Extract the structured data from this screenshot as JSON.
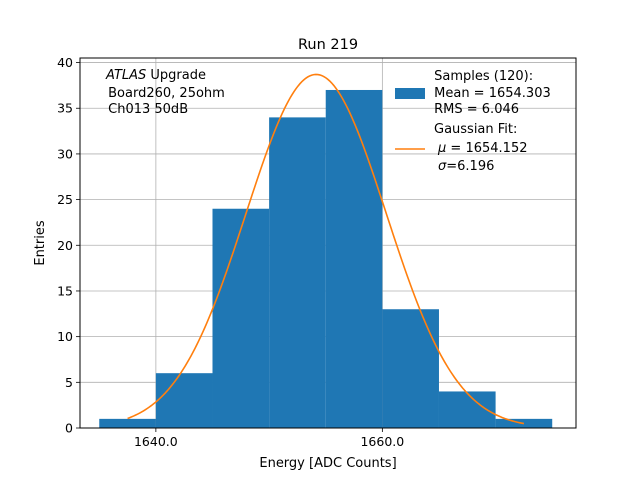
{
  "chart_data": {
    "type": "bar",
    "title": "Run 219",
    "xlabel": "Energy [ADC Counts]",
    "ylabel": "Entries",
    "xlim": [
      1633.3,
      1677.1
    ],
    "ylim": [
      0,
      40.5
    ],
    "grid": true,
    "x_ticks": [
      {
        "value": 1640,
        "label": "1640.0"
      },
      {
        "value": 1660,
        "label": "1660.0"
      }
    ],
    "y_ticks": [
      0,
      5,
      10,
      15,
      20,
      25,
      30,
      35,
      40
    ],
    "bins": [
      {
        "left": 1635,
        "right": 1640,
        "count": 1
      },
      {
        "left": 1640,
        "right": 1645,
        "count": 6
      },
      {
        "left": 1645,
        "right": 1650,
        "count": 24
      },
      {
        "left": 1650,
        "right": 1655,
        "count": 34
      },
      {
        "left": 1655,
        "right": 1660,
        "count": 37
      },
      {
        "left": 1660,
        "right": 1665,
        "count": 13
      },
      {
        "left": 1665,
        "right": 1670,
        "count": 4
      },
      {
        "left": 1670,
        "right": 1675,
        "count": 1
      }
    ],
    "fit": {
      "mu": 1654.152,
      "sigma": 6.196,
      "amplitude": 38.7,
      "x_range": [
        1637.5,
        1672.5
      ]
    },
    "colors": {
      "bars": "#1f77b4",
      "fit": "#ff7f0e",
      "grid": "#b0b0b0"
    },
    "annotation": {
      "italic": "ATLAS",
      "line1_rest": " Upgrade",
      "line2": " Board260, 25ohm",
      "line3": " Ch013 50dB"
    },
    "legend": {
      "placement": "top-right",
      "samples": [
        " Samples (120):",
        " Mean = 1654.303",
        " RMS = 6.046"
      ],
      "fit_lines": [
        "Gaussian Fit:",
        "1654.152",
        "6.196"
      ],
      "mu_symbol": "μ",
      "sigma_symbol": "σ"
    }
  }
}
